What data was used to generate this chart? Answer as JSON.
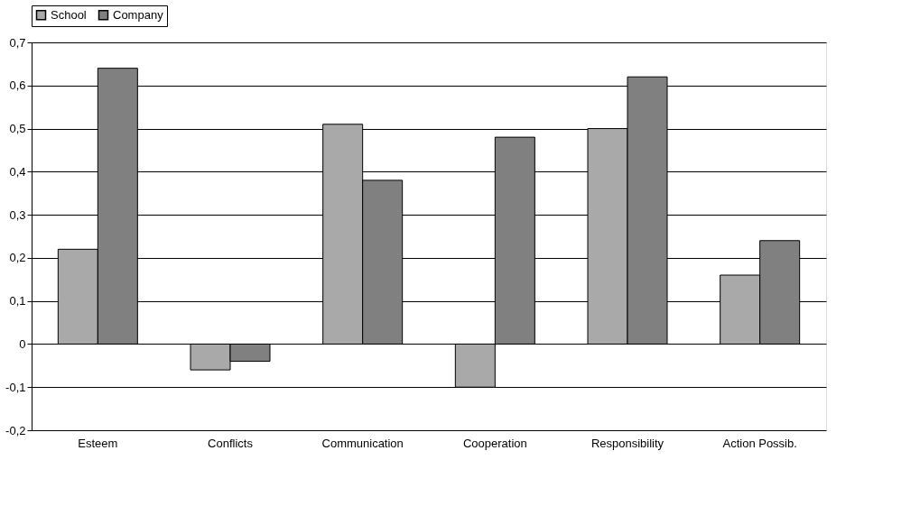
{
  "chart_data": {
    "type": "bar",
    "categories": [
      "Esteem",
      "Conflicts",
      "Communication",
      "Cooperation",
      "Responsibility",
      "Action Possib."
    ],
    "series": [
      {
        "name": "School",
        "color": "#a9a9a9",
        "values": [
          0.22,
          -0.06,
          0.51,
          -0.1,
          0.5,
          0.16
        ]
      },
      {
        "name": "Company",
        "color": "#808080",
        "values": [
          0.64,
          -0.04,
          0.38,
          0.48,
          0.62,
          0.24
        ]
      }
    ],
    "ylim": [
      -0.2,
      0.7
    ],
    "yticks": [
      {
        "value": -0.2,
        "label": "-0,2"
      },
      {
        "value": -0.1,
        "label": "-0,1"
      },
      {
        "value": 0,
        "label": "0"
      },
      {
        "value": 0.1,
        "label": "0,1"
      },
      {
        "value": 0.2,
        "label": "0,2"
      },
      {
        "value": 0.3,
        "label": "0,3"
      },
      {
        "value": 0.4,
        "label": "0,4"
      },
      {
        "value": 0.5,
        "label": "0,5"
      },
      {
        "value": 0.6,
        "label": "0,6"
      },
      {
        "value": 0.7,
        "label": "0,7"
      }
    ],
    "grid": "y",
    "legend": "top"
  }
}
